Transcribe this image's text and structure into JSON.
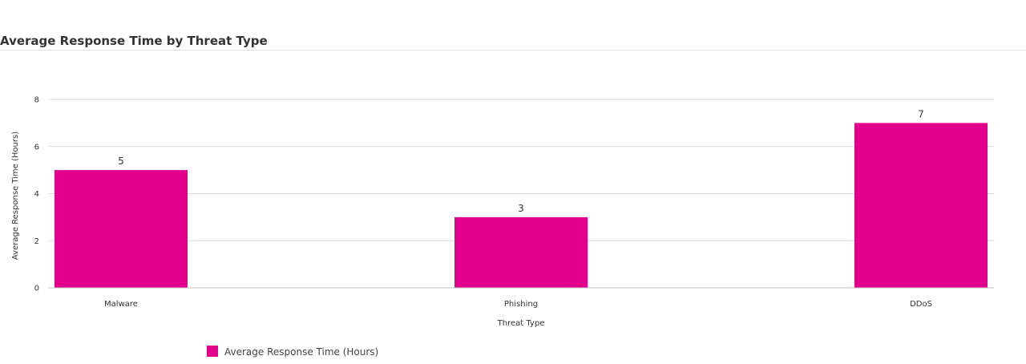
{
  "title": "Average Response Time by Threat Type",
  "chart_data": {
    "type": "bar",
    "title": "Average Response Time by Threat Type",
    "categories": [
      "Malware",
      "Phishing",
      "DDoS"
    ],
    "series": [
      {
        "name": "Average Response Time (Hours)",
        "values": [
          5,
          3,
          7
        ],
        "color": "#e3008c"
      }
    ],
    "xlabel": "Threat Type",
    "ylabel": "Average Response Time (Hours)",
    "ylim": [
      0,
      8
    ],
    "yticks": [
      0,
      2,
      4,
      6,
      8
    ],
    "grid": true,
    "data_labels": true,
    "legend_position": "bottom-left"
  }
}
